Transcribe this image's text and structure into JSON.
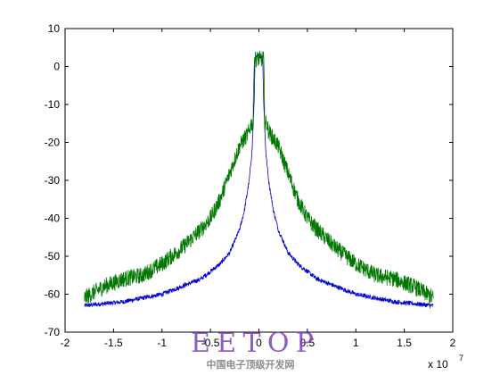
{
  "chart_data": {
    "type": "line",
    "title": "",
    "xlabel": "",
    "ylabel": "",
    "x_exponent_label": "x 10",
    "x_exponent_power": "7",
    "xlim": [
      -20000000.0,
      20000000.0
    ],
    "ylim": [
      -70,
      10
    ],
    "xticks": [
      -20000000.0,
      -15000000.0,
      -10000000.0,
      -5000000.0,
      0,
      5000000.0,
      10000000.0,
      15000000.0,
      20000000.0
    ],
    "xtick_labels": [
      "-2",
      "-1.5",
      "-1",
      "-0.5",
      "0",
      "0.5",
      "1",
      "1.5",
      "2"
    ],
    "yticks": [
      10,
      0,
      -10,
      -20,
      -30,
      -40,
      -50,
      -60,
      -70
    ],
    "ytick_labels": [
      "10",
      "0",
      "-10",
      "-20",
      "-30",
      "-40",
      "-50",
      "-60",
      "-70"
    ],
    "grid": false,
    "legend": "none",
    "series": [
      {
        "color": "#0000cc",
        "x": [
          -18000000.0,
          -16000000.0,
          -14000000.0,
          -12000000.0,
          -10000000.0,
          -8000000.0,
          -6000000.0,
          -4000000.0,
          -3000000.0,
          -2000000.0,
          -1500000.0,
          -1000000.0,
          -700000.0,
          -500000.0,
          -400000.0,
          0,
          400000.0,
          500000.0,
          700000.0,
          1000000.0,
          1500000.0,
          2000000.0,
          3000000.0,
          4000000.0,
          6000000.0,
          8000000.0,
          10000000.0,
          12000000.0,
          14000000.0,
          16000000.0,
          18000000.0
        ],
        "y": [
          -63,
          -62.5,
          -62,
          -61,
          -60,
          -58,
          -56,
          -52,
          -49,
          -43,
          -38,
          -30,
          -22,
          -10,
          2,
          3,
          2,
          -10,
          -22,
          -30,
          -38,
          -43,
          -49,
          -52,
          -56,
          -58,
          -60,
          -61,
          -62,
          -62.5,
          -63
        ],
        "noise": 0.6
      },
      {
        "color": "#007700",
        "x": [
          -18000000.0,
          -16000000.0,
          -14000000.0,
          -12000000.0,
          -10000000.0,
          -8000000.0,
          -6000000.0,
          -5000000.0,
          -4000000.0,
          -3000000.0,
          -2000000.0,
          -1500000.0,
          -1200000.0,
          -1000000.0,
          -800000.0,
          -600000.0,
          -500000.0,
          0,
          500000.0,
          600000.0,
          800000.0,
          1000000.0,
          1200000.0,
          1500000.0,
          2000000.0,
          3000000.0,
          4000000.0,
          5000000.0,
          6000000.0,
          8000000.0,
          10000000.0,
          12000000.0,
          14000000.0,
          16000000.0,
          18000000.0
        ],
        "y": [
          -61,
          -58,
          -56,
          -55,
          -52,
          -48,
          -43,
          -40,
          -35,
          -28,
          -21,
          -19,
          -18,
          -17,
          -15,
          -15,
          2,
          2,
          2,
          -15,
          -15,
          -17,
          -18,
          -19,
          -21,
          -28,
          -35,
          -40,
          -43,
          -48,
          -52,
          -55,
          -56,
          -58,
          -61
        ],
        "noise": 2.2
      }
    ]
  },
  "watermark": {
    "logo_text": "EETOP",
    "subtitle": "中国电子顶级开发网",
    "color": "#7b3fb8",
    "subtitle_color": "#8c8c8c"
  }
}
